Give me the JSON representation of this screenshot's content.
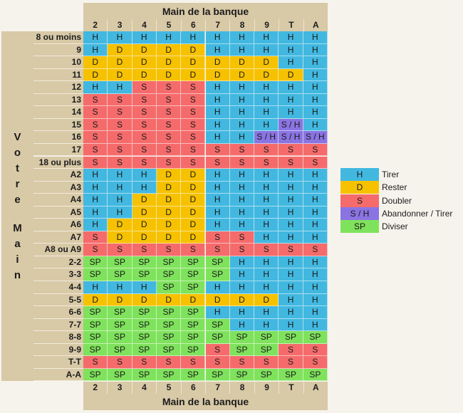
{
  "dealer_header": {
    "title": "Main de la banque",
    "cards": [
      "2",
      "3",
      "4",
      "5",
      "6",
      "7",
      "8",
      "9",
      "T",
      "A"
    ]
  },
  "dealer_footer": {
    "title": "Main de la banque",
    "cards": [
      "2",
      "3",
      "4",
      "5",
      "6",
      "7",
      "8",
      "9",
      "T",
      "A"
    ]
  },
  "side_label": {
    "word1": [
      "V",
      "o",
      "t",
      "r",
      "e"
    ],
    "word2": [
      "M",
      "a",
      "i",
      "n"
    ]
  },
  "colors": {
    "H": "#42b8e0",
    "D": "#f6c200",
    "S": "#f56b6b",
    "S / H": "#8a74e2",
    "SP": "#7fe25c"
  },
  "rows": [
    {
      "label": "8 ou moins",
      "actions": [
        "H",
        "H",
        "H",
        "H",
        "H",
        "H",
        "H",
        "H",
        "H",
        "H"
      ]
    },
    {
      "label": "9",
      "actions": [
        "H",
        "D",
        "D",
        "D",
        "D",
        "H",
        "H",
        "H",
        "H",
        "H"
      ]
    },
    {
      "label": "10",
      "actions": [
        "D",
        "D",
        "D",
        "D",
        "D",
        "D",
        "D",
        "D",
        "H",
        "H"
      ]
    },
    {
      "label": "11",
      "actions": [
        "D",
        "D",
        "D",
        "D",
        "D",
        "D",
        "D",
        "D",
        "D",
        "H"
      ]
    },
    {
      "label": "12",
      "actions": [
        "H",
        "H",
        "S",
        "S",
        "S",
        "H",
        "H",
        "H",
        "H",
        "H"
      ]
    },
    {
      "label": "13",
      "actions": [
        "S",
        "S",
        "S",
        "S",
        "S",
        "H",
        "H",
        "H",
        "H",
        "H"
      ]
    },
    {
      "label": "14",
      "actions": [
        "S",
        "S",
        "S",
        "S",
        "S",
        "H",
        "H",
        "H",
        "H",
        "H"
      ]
    },
    {
      "label": "15",
      "actions": [
        "S",
        "S",
        "S",
        "S",
        "S",
        "H",
        "H",
        "H",
        "S / H",
        "H"
      ]
    },
    {
      "label": "16",
      "actions": [
        "S",
        "S",
        "S",
        "S",
        "S",
        "H",
        "H",
        "S / H",
        "S / H",
        "S / H"
      ]
    },
    {
      "label": "17",
      "actions": [
        "S",
        "S",
        "S",
        "S",
        "S",
        "S",
        "S",
        "S",
        "S",
        "S"
      ]
    },
    {
      "label": "18 ou plus",
      "actions": [
        "S",
        "S",
        "S",
        "S",
        "S",
        "S",
        "S",
        "S",
        "S",
        "S"
      ]
    },
    {
      "label": "A2",
      "actions": [
        "H",
        "H",
        "H",
        "D",
        "D",
        "H",
        "H",
        "H",
        "H",
        "H"
      ]
    },
    {
      "label": "A3",
      "actions": [
        "H",
        "H",
        "H",
        "D",
        "D",
        "H",
        "H",
        "H",
        "H",
        "H"
      ]
    },
    {
      "label": "A4",
      "actions": [
        "H",
        "H",
        "D",
        "D",
        "D",
        "H",
        "H",
        "H",
        "H",
        "H"
      ]
    },
    {
      "label": "A5",
      "actions": [
        "H",
        "H",
        "D",
        "D",
        "D",
        "H",
        "H",
        "H",
        "H",
        "H"
      ]
    },
    {
      "label": "A6",
      "actions": [
        "H",
        "D",
        "D",
        "D",
        "D",
        "H",
        "H",
        "H",
        "H",
        "H"
      ]
    },
    {
      "label": "A7",
      "actions": [
        "S",
        "D",
        "D",
        "D",
        "D",
        "S",
        "S",
        "H",
        "H",
        "H"
      ]
    },
    {
      "label": "A8 ou A9",
      "actions": [
        "S",
        "S",
        "S",
        "S",
        "S",
        "S",
        "S",
        "S",
        "S",
        "S"
      ]
    },
    {
      "label": "2-2",
      "actions": [
        "SP",
        "SP",
        "SP",
        "SP",
        "SP",
        "SP",
        "H",
        "H",
        "H",
        "H"
      ]
    },
    {
      "label": "3-3",
      "actions": [
        "SP",
        "SP",
        "SP",
        "SP",
        "SP",
        "SP",
        "H",
        "H",
        "H",
        "H"
      ]
    },
    {
      "label": "4-4",
      "actions": [
        "H",
        "H",
        "H",
        "SP",
        "SP",
        "H",
        "H",
        "H",
        "H",
        "H"
      ]
    },
    {
      "label": "5-5",
      "actions": [
        "D",
        "D",
        "D",
        "D",
        "D",
        "D",
        "D",
        "D",
        "H",
        "H"
      ]
    },
    {
      "label": "6-6",
      "actions": [
        "SP",
        "SP",
        "SP",
        "SP",
        "SP",
        "H",
        "H",
        "H",
        "H",
        "H"
      ]
    },
    {
      "label": "7-7",
      "actions": [
        "SP",
        "SP",
        "SP",
        "SP",
        "SP",
        "SP",
        "H",
        "H",
        "H",
        "H"
      ]
    },
    {
      "label": "8-8",
      "actions": [
        "SP",
        "SP",
        "SP",
        "SP",
        "SP",
        "SP",
        "SP",
        "SP",
        "SP",
        "SP"
      ]
    },
    {
      "label": "9-9",
      "actions": [
        "SP",
        "SP",
        "SP",
        "SP",
        "SP",
        "S",
        "SP",
        "SP",
        "S",
        "S"
      ]
    },
    {
      "label": "T-T",
      "actions": [
        "S",
        "S",
        "S",
        "S",
        "S",
        "S",
        "S",
        "S",
        "S",
        "S"
      ]
    },
    {
      "label": "A-A",
      "actions": [
        "SP",
        "SP",
        "SP",
        "SP",
        "SP",
        "SP",
        "SP",
        "SP",
        "SP",
        "SP"
      ]
    }
  ],
  "legend": [
    {
      "code": "H",
      "label": "Tirer"
    },
    {
      "code": "D",
      "label": "Rester"
    },
    {
      "code": "S",
      "label": "Doubler"
    },
    {
      "code": "S / H",
      "label": "Abandonner / Tirer"
    },
    {
      "code": "SP",
      "label": "Diviser"
    }
  ]
}
